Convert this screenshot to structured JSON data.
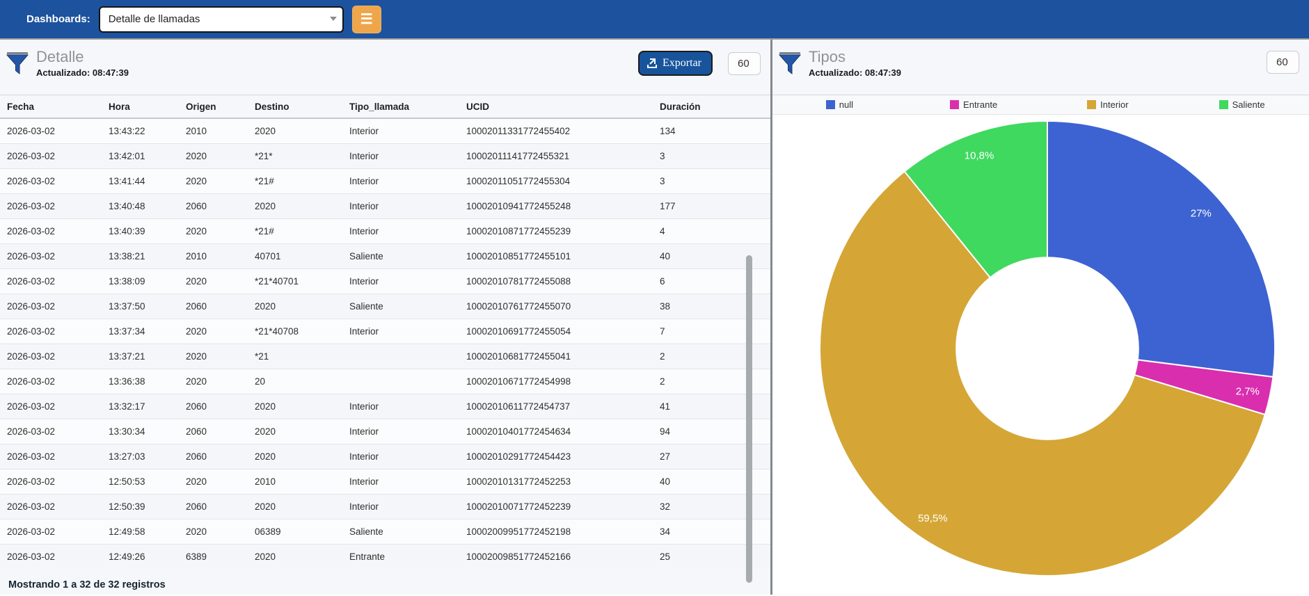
{
  "topbar": {
    "label": "Dashboards:",
    "selected_dashboard": "Detalle de llamadas",
    "colors": {
      "bar": "#1d529e",
      "menu_button": "#efa64a"
    }
  },
  "left_panel": {
    "title": "Detalle",
    "updated_label": "Actualizado:",
    "updated_time": "08:47:39",
    "export_label": "Exportar",
    "refresh_value": "60",
    "footer": "Mostrando 1 a 32 de 32 registros",
    "table": {
      "columns": [
        "Fecha",
        "Hora",
        "Origen",
        "Destino",
        "Tipo_llamada",
        "UCID",
        "Duración"
      ],
      "rows": [
        [
          "2026-03-02",
          "13:43:22",
          "2010",
          "2020",
          "Interior",
          "10002011331772455402",
          "134"
        ],
        [
          "2026-03-02",
          "13:42:01",
          "2020",
          "*21*",
          "Interior",
          "10002011141772455321",
          "3"
        ],
        [
          "2026-03-02",
          "13:41:44",
          "2020",
          "*21#",
          "Interior",
          "10002011051772455304",
          "3"
        ],
        [
          "2026-03-02",
          "13:40:48",
          "2060",
          "2020",
          "Interior",
          "10002010941772455248",
          "177"
        ],
        [
          "2026-03-02",
          "13:40:39",
          "2020",
          "*21#",
          "Interior",
          "10002010871772455239",
          "4"
        ],
        [
          "2026-03-02",
          "13:38:21",
          "2010",
          "40701",
          "Saliente",
          "10002010851772455101",
          "40"
        ],
        [
          "2026-03-02",
          "13:38:09",
          "2020",
          "*21*40701",
          "Interior",
          "10002010781772455088",
          "6"
        ],
        [
          "2026-03-02",
          "13:37:50",
          "2060",
          "2020",
          "Saliente",
          "10002010761772455070",
          "38"
        ],
        [
          "2026-03-02",
          "13:37:34",
          "2020",
          "*21*40708",
          "Interior",
          "10002010691772455054",
          "7"
        ],
        [
          "2026-03-02",
          "13:37:21",
          "2020",
          "*21",
          "",
          "10002010681772455041",
          "2"
        ],
        [
          "2026-03-02",
          "13:36:38",
          "2020",
          "20",
          "",
          "10002010671772454998",
          "2"
        ],
        [
          "2026-03-02",
          "13:32:17",
          "2060",
          "2020",
          "Interior",
          "10002010611772454737",
          "41"
        ],
        [
          "2026-03-02",
          "13:30:34",
          "2060",
          "2020",
          "Interior",
          "10002010401772454634",
          "94"
        ],
        [
          "2026-03-02",
          "13:27:03",
          "2060",
          "2020",
          "Interior",
          "10002010291772454423",
          "27"
        ],
        [
          "2026-03-02",
          "12:50:53",
          "2020",
          "2010",
          "Interior",
          "10002010131772452253",
          "40"
        ],
        [
          "2026-03-02",
          "12:50:39",
          "2060",
          "2020",
          "Interior",
          "10002010071772452239",
          "32"
        ],
        [
          "2026-03-02",
          "12:49:58",
          "2020",
          "06389",
          "Saliente",
          "10002009951772452198",
          "34"
        ],
        [
          "2026-03-02",
          "12:49:26",
          "6389",
          "2020",
          "Entrante",
          "10002009851772452166",
          "25"
        ]
      ]
    }
  },
  "right_panel": {
    "title": "Tipos",
    "updated_label": "Actualizado:",
    "updated_time": "08:47:39",
    "refresh_value": "60"
  },
  "chart_data": {
    "type": "pie",
    "title": "Tipos",
    "donut": true,
    "inner_radius_ratio": 0.4,
    "start_angle_deg": 0,
    "direction": "clockwise",
    "legend_position": "top",
    "categories": [
      "null",
      "Entrante",
      "Interior",
      "Saliente"
    ],
    "values": [
      27,
      2.7,
      59.5,
      10.8
    ],
    "labels": [
      "27%",
      "2,7%",
      "59,5%",
      "10,8%"
    ],
    "colors": [
      "#3d63d2",
      "#d92eae",
      "#d5a636",
      "#3fd95f"
    ]
  }
}
